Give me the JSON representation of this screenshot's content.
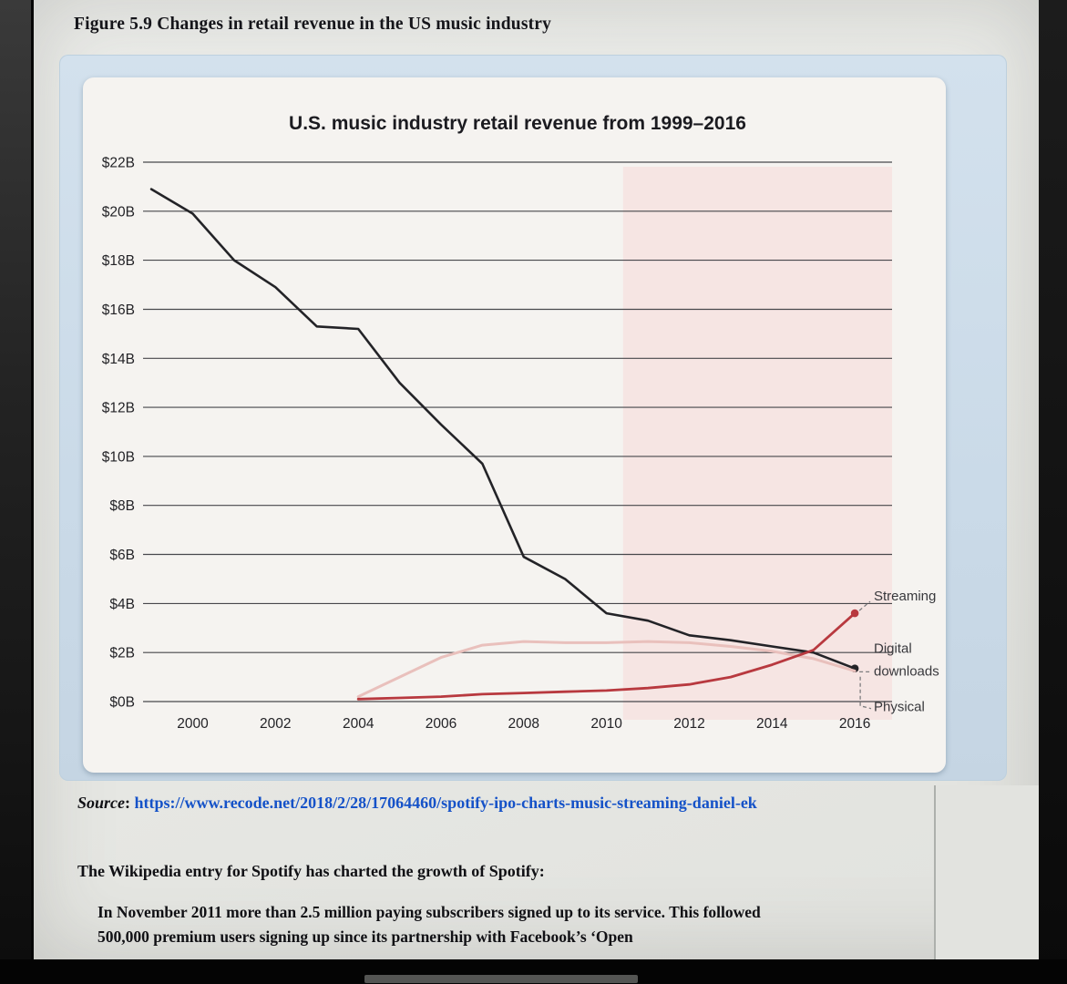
{
  "figure": {
    "caption": "Figure 5.9 Changes in retail revenue in the US music industry"
  },
  "source": {
    "label": "Source",
    "separator": ": ",
    "link": "https://www.recode.net/2018/2/28/17064460/spotify-ipo-charts-music-streaming-daniel-ek"
  },
  "body": {
    "intro": "The Wikipedia entry for Spotify has charted the growth of Spotify:",
    "quote": "In November 2011 more than 2.5 million paying subscribers signed up to its service. This followed 500,000 premium users signing up since its partnership with Facebook’s ‘Open"
  },
  "chart_data": {
    "type": "line",
    "title": "U.S. music industry retail revenue from 1999–2016",
    "xlabel": "",
    "ylabel": "",
    "xlim": [
      1998.8,
      2016.9
    ],
    "ylim": [
      0,
      22
    ],
    "grid": true,
    "x_ticks": [
      2000,
      2002,
      2004,
      2006,
      2008,
      2010,
      2012,
      2014,
      2016
    ],
    "y_tick_values": [
      22,
      20,
      18,
      16,
      14,
      12,
      10,
      8,
      6,
      4,
      2,
      0
    ],
    "y_tick_labels": [
      "$22B",
      "$20B",
      "$18B",
      "$16B",
      "$14B",
      "$12B",
      "$10B",
      "$8B",
      "$6B",
      "$4B",
      "$2B",
      "$0B"
    ],
    "highlight_region": {
      "x_start": 2010.4,
      "x_end": 2016.9,
      "color": "#f6e5e3"
    },
    "series": [
      {
        "name": "Physical",
        "color": "#232327",
        "stroke_width": 2.6,
        "end_dot": true,
        "x": [
          1999,
          2000,
          2001,
          2002,
          2003,
          2004,
          2005,
          2006,
          2007,
          2008,
          2009,
          2010,
          2011,
          2012,
          2013,
          2014,
          2015,
          2016
        ],
        "values": [
          20.9,
          19.9,
          18.0,
          16.9,
          15.3,
          15.2,
          13.0,
          11.3,
          9.7,
          5.9,
          5.0,
          3.6,
          3.3,
          2.7,
          2.5,
          2.25,
          2.0,
          1.35
        ]
      },
      {
        "name": "Digital downloads",
        "color": "#e9c0bc",
        "stroke_width": 3,
        "end_dot": false,
        "x": [
          2004,
          2005,
          2006,
          2007,
          2008,
          2009,
          2010,
          2011,
          2012,
          2013,
          2014,
          2015,
          2016
        ],
        "values": [
          0.2,
          1.0,
          1.8,
          2.3,
          2.45,
          2.4,
          2.4,
          2.45,
          2.4,
          2.25,
          2.05,
          1.75,
          1.25
        ]
      },
      {
        "name": "Streaming",
        "color": "#b8393f",
        "stroke_width": 2.8,
        "end_dot": true,
        "x": [
          2004,
          2005,
          2006,
          2007,
          2008,
          2009,
          2010,
          2011,
          2012,
          2013,
          2014,
          2015,
          2016
        ],
        "values": [
          0.1,
          0.15,
          0.2,
          0.3,
          0.35,
          0.4,
          0.45,
          0.55,
          0.7,
          1.0,
          1.5,
          2.1,
          3.6
        ]
      }
    ],
    "legend_position": "right",
    "legend": [
      {
        "series": "Streaming",
        "lines": [
          "Streaming"
        ]
      },
      {
        "series": "Digital downloads",
        "lines": [
          "Digital",
          "downloads"
        ]
      },
      {
        "series": "Physical",
        "lines": [
          "Physical"
        ]
      }
    ]
  }
}
